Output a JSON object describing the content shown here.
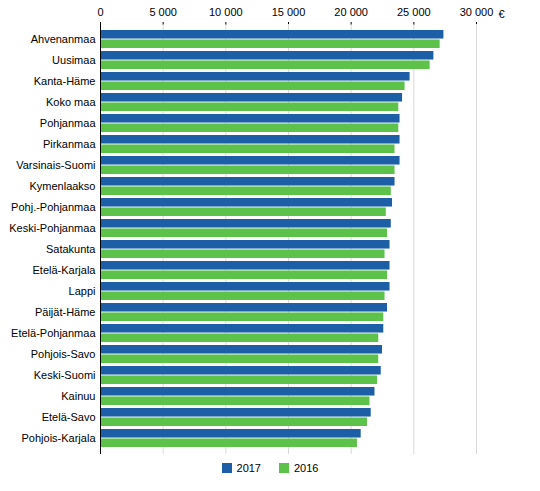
{
  "chart_data": {
    "type": "bar",
    "orientation": "horizontal",
    "xlabel": "€",
    "categories": [
      "Ahvenanmaa",
      "Uusimaa",
      "Kanta-Häme",
      "Koko maa",
      "Pohjanmaa",
      "Pirkanmaa",
      "Varsinais-Suomi",
      "Kymenlaakso",
      "Pohj.-Pohjanmaa",
      "Keski-Pohjanmaa",
      "Satakunta",
      "Etelä-Karjala",
      "Lappi",
      "Päijät-Häme",
      "Etelä-Pohjanmaa",
      "Pohjois-Savo",
      "Keski-Suomi",
      "Kainuu",
      "Etelä-Savo",
      "Pohjois-Karjala"
    ],
    "series": [
      {
        "name": "2017",
        "color": "#1d5fa6",
        "values": [
          27400,
          26600,
          24700,
          24100,
          23900,
          23900,
          23900,
          23500,
          23300,
          23200,
          23100,
          23100,
          23100,
          22900,
          22600,
          22500,
          22400,
          21900,
          21600,
          20800
        ]
      },
      {
        "name": "2016",
        "color": "#5cc24a",
        "values": [
          27100,
          26300,
          24300,
          23800,
          23800,
          23500,
          23500,
          23200,
          22800,
          22900,
          22700,
          22900,
          22700,
          22600,
          22200,
          22200,
          22100,
          21500,
          21300,
          20500
        ]
      }
    ],
    "xlim": [
      0,
      30000
    ],
    "xticks": [
      0,
      {
        "value": 5000,
        "label": "5 000"
      },
      {
        "value": 10000,
        "label": "10 000"
      },
      {
        "value": 15000,
        "label": "15 000"
      },
      {
        "value": 20000,
        "label": "20 000"
      },
      {
        "value": 25000,
        "label": "25 000"
      },
      {
        "value": 30000,
        "label": "30 000"
      }
    ],
    "grid": true,
    "legend": "bottom"
  }
}
